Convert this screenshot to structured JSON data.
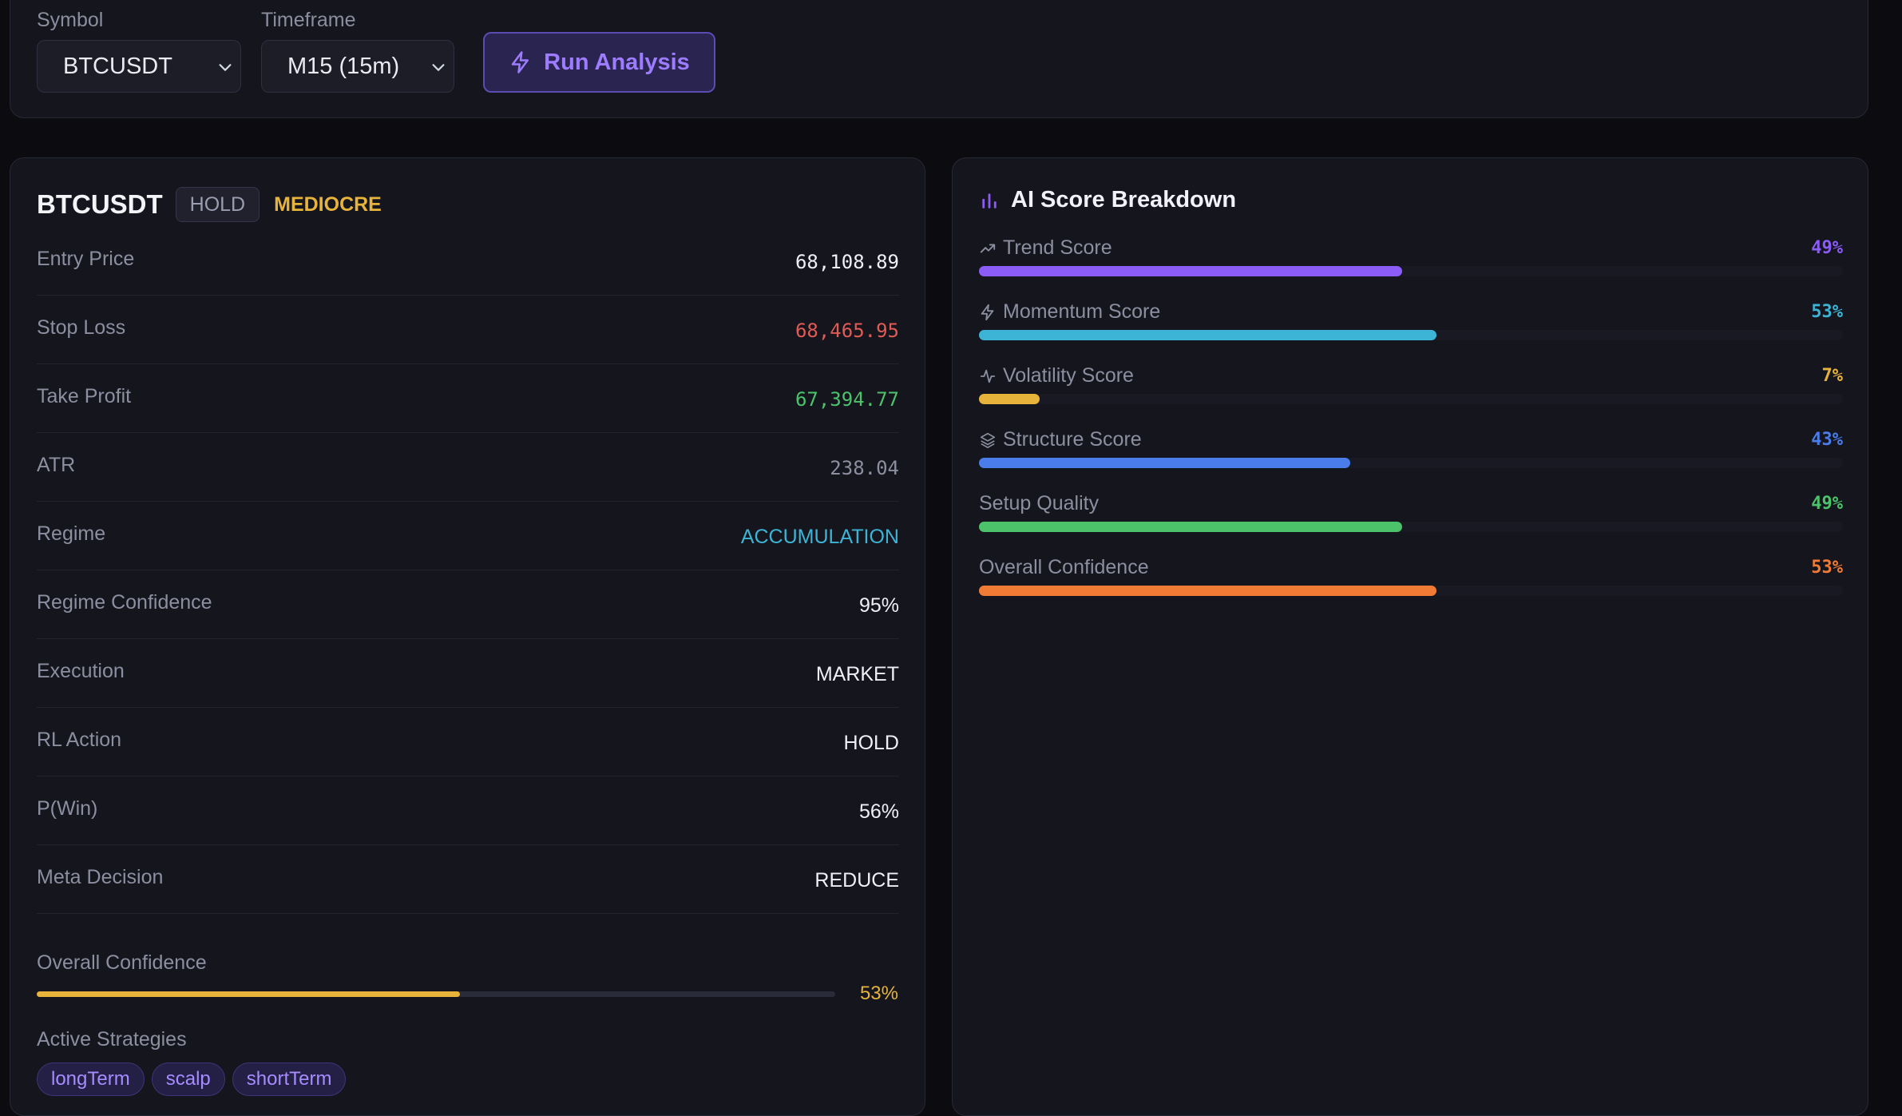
{
  "toolbar": {
    "symbol_label": "Symbol",
    "symbol_value": "BTCUSDT",
    "timeframe_label": "Timeframe",
    "timeframe_value": "M15 (15m)",
    "run_label": "Run Analysis"
  },
  "signal": {
    "symbol": "BTCUSDT",
    "action_badge": "HOLD",
    "quality": "MEDIOCRE",
    "rows": [
      {
        "label": "Entry Price",
        "value": "68,108.89",
        "color": "#eef0f5"
      },
      {
        "label": "Stop Loss",
        "value": "68,465.95",
        "color": "#e05b55"
      },
      {
        "label": "Take Profit",
        "value": "67,394.77",
        "color": "#4cc36a"
      },
      {
        "label": "ATR",
        "value": "238.04",
        "color": "#8c8fa0"
      },
      {
        "label": "Regime",
        "value": "ACCUMULATION",
        "color": "#3db4d6"
      },
      {
        "label": "Regime Confidence",
        "value": "95%",
        "color": "#eef0f5"
      },
      {
        "label": "Execution",
        "value": "MARKET",
        "color": "#eef0f5"
      },
      {
        "label": "RL Action",
        "value": "HOLD",
        "color": "#eef0f5"
      },
      {
        "label": "P(Win)",
        "value": "56%",
        "color": "#eef0f5"
      },
      {
        "label": "Meta Decision",
        "value": "REDUCE",
        "color": "#eef0f5"
      }
    ],
    "overall_confidence_label": "Overall Confidence",
    "overall_confidence": 53,
    "overall_confidence_text": "53%",
    "strategies_label": "Active Strategies",
    "strategies": [
      "longTerm",
      "scalp",
      "shortTerm"
    ]
  },
  "breakdown": {
    "title": "AI Score Breakdown",
    "scores": [
      {
        "label": "Trend Score",
        "icon": "trending-up-icon",
        "value": 49,
        "text": "49%",
        "color": "#8b5cf6"
      },
      {
        "label": "Momentum Score",
        "icon": "lightning-icon",
        "value": 53,
        "text": "53%",
        "color": "#3db4d6"
      },
      {
        "label": "Volatility Score",
        "icon": "activity-icon",
        "value": 7,
        "text": "7%",
        "color": "#e8b33b"
      },
      {
        "label": "Structure Score",
        "icon": "layers-icon",
        "value": 43,
        "text": "43%",
        "color": "#4a7dea"
      },
      {
        "label": "Setup Quality",
        "icon": "",
        "value": 49,
        "text": "49%",
        "color": "#4cc36a"
      },
      {
        "label": "Overall Confidence",
        "icon": "",
        "value": 53,
        "text": "53%",
        "color": "#f07b35"
      }
    ]
  }
}
